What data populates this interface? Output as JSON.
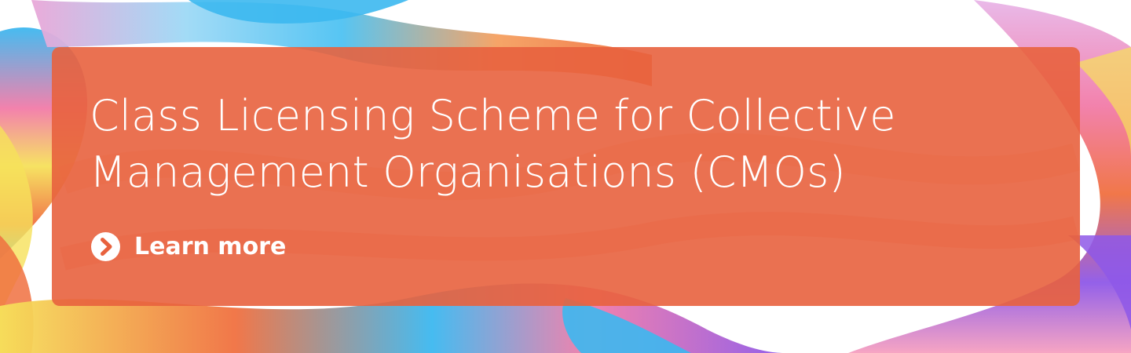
{
  "banner": {
    "headline_line1": "Class Licensing Scheme for Collective",
    "headline_line2": "Management Organisations (CMOs)",
    "cta_label": "Learn more",
    "cta_icon": "chevron-circle-right-icon",
    "colors": {
      "panel": "#E8623E",
      "text": "#FFFFFF",
      "ribbon_blue": "#3CB8F0",
      "ribbon_pink": "#F27BA8",
      "ribbon_orange": "#F07040",
      "ribbon_yellow": "#F6E15A",
      "ribbon_purple": "#8E58E8"
    }
  }
}
